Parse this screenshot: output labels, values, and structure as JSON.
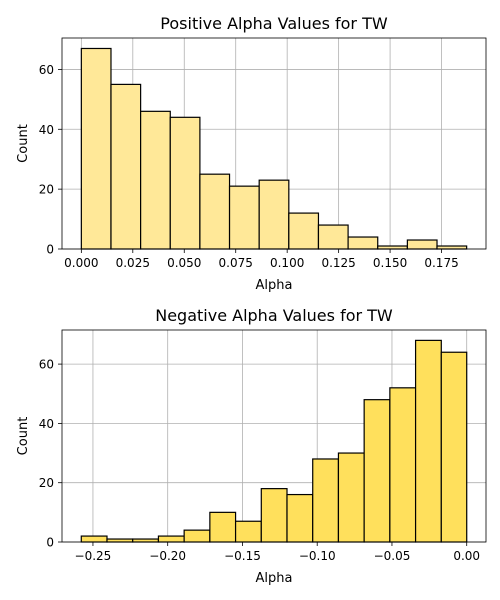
{
  "chart_data": [
    {
      "type": "bar",
      "title": "Positive Alpha Values for TW",
      "xlabel": "Alpha",
      "ylabel": "Count",
      "color": "#FFE898",
      "bin_edges": [
        0.0,
        0.0144,
        0.0288,
        0.0432,
        0.0576,
        0.072,
        0.0864,
        0.1008,
        0.1152,
        0.1296,
        0.144,
        0.1584,
        0.1728,
        0.1872
      ],
      "values": [
        67,
        55,
        46,
        44,
        25,
        21,
        23,
        12,
        8,
        4,
        1,
        3,
        1
      ],
      "xlim": [
        -0.0094,
        0.1966
      ],
      "ylim": [
        0,
        70.5
      ],
      "xticks": [
        0.0,
        0.025,
        0.05,
        0.075,
        0.1,
        0.125,
        0.15,
        0.175
      ],
      "xtick_labels": [
        "0.000",
        "0.025",
        "0.050",
        "0.075",
        "0.100",
        "0.125",
        "0.150",
        "0.175"
      ],
      "yticks": [
        0,
        20,
        40,
        60
      ],
      "ytick_labels": [
        "0",
        "20",
        "40",
        "60"
      ],
      "grid": true
    },
    {
      "type": "bar",
      "title": "Negative Alpha Values for TW",
      "xlabel": "Alpha",
      "ylabel": "Count",
      "color": "#FFE05C",
      "bin_edges": [
        -0.2578,
        -0.2406,
        -0.2234,
        -0.2062,
        -0.189,
        -0.1718,
        -0.1546,
        -0.1374,
        -0.1202,
        -0.103,
        -0.0858,
        -0.0686,
        -0.0514,
        -0.0342,
        -0.017,
        0.0
      ],
      "values": [
        2,
        1,
        1,
        2,
        4,
        10,
        7,
        18,
        16,
        28,
        30,
        48,
        52,
        68,
        64
      ],
      "xlim": [
        -0.2707,
        0.0129
      ],
      "ylim": [
        0,
        71.5
      ],
      "xticks": [
        -0.25,
        -0.2,
        -0.15,
        -0.1,
        -0.05,
        0.0
      ],
      "xtick_labels": [
        "−0.25",
        "−0.20",
        "−0.15",
        "−0.10",
        "−0.05",
        "0.00"
      ],
      "yticks": [
        0,
        20,
        40,
        60
      ],
      "ytick_labels": [
        "0",
        "20",
        "40",
        "60"
      ],
      "grid": true
    }
  ]
}
